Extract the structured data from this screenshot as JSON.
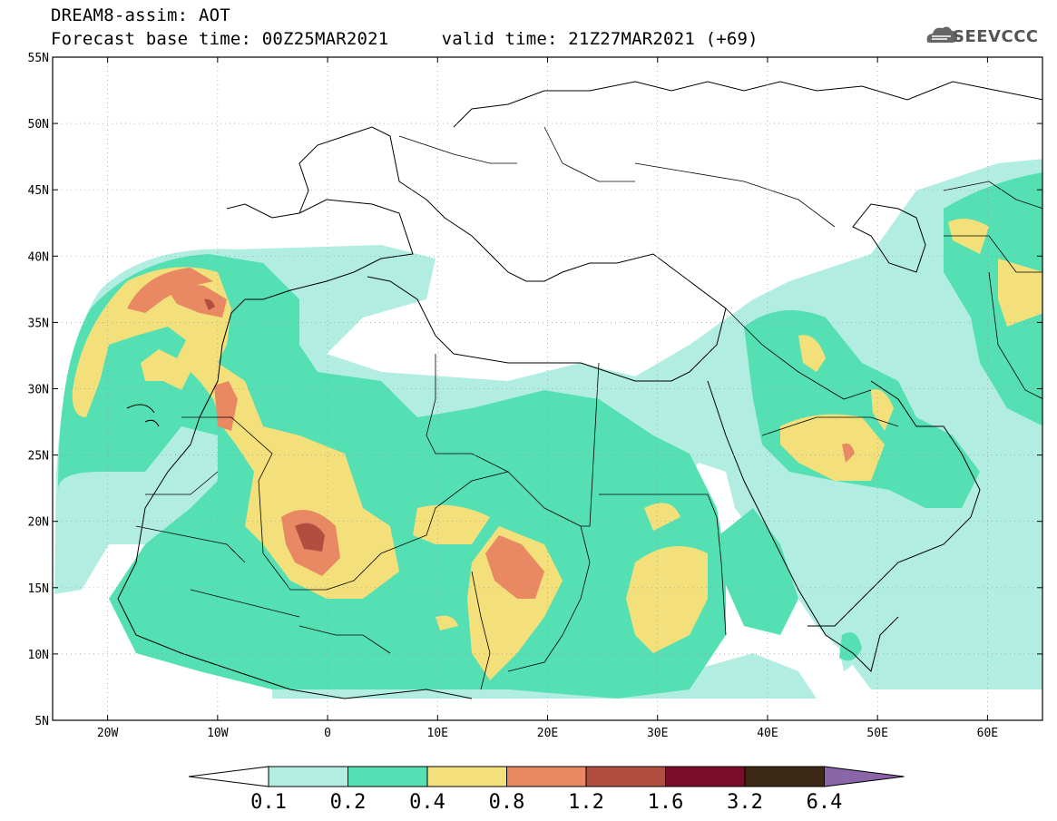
{
  "header": {
    "line1": "DREAM8-assim: AOT",
    "line2": "Forecast base time: 00Z25MAR2021     valid time: 21Z27MAR2021 (+69)"
  },
  "logo": {
    "text": "SEEVCCC",
    "icon": "cloud-icon"
  },
  "map": {
    "lon_range": [
      -25,
      65
    ],
    "lat_range": [
      5,
      55
    ],
    "lat_labels": [
      {
        "value": 55,
        "text": "55N"
      },
      {
        "value": 50,
        "text": "50N"
      },
      {
        "value": 45,
        "text": "45N"
      },
      {
        "value": 40,
        "text": "40N"
      },
      {
        "value": 35,
        "text": "35N"
      },
      {
        "value": 30,
        "text": "30N"
      },
      {
        "value": 25,
        "text": "25N"
      },
      {
        "value": 20,
        "text": "20N"
      },
      {
        "value": 15,
        "text": "15N"
      },
      {
        "value": 10,
        "text": "10N"
      },
      {
        "value": 5,
        "text": "5N"
      }
    ],
    "lon_labels": [
      {
        "value": -20,
        "text": "20W"
      },
      {
        "value": -10,
        "text": "10W"
      },
      {
        "value": 0,
        "text": "0"
      },
      {
        "value": 10,
        "text": "10E"
      },
      {
        "value": 20,
        "text": "20E"
      },
      {
        "value": 30,
        "text": "30E"
      },
      {
        "value": 40,
        "text": "40E"
      },
      {
        "value": 50,
        "text": "50E"
      },
      {
        "value": 60,
        "text": "60E"
      }
    ],
    "grid": "dotted"
  },
  "colorbar": {
    "labels": [
      "0.1",
      "0.2",
      "0.4",
      "0.8",
      "1.2",
      "1.6",
      "3.2",
      "6.4"
    ],
    "colors": [
      "#ffffff",
      "#b2ede2",
      "#55e0b4",
      "#f3e07a",
      "#e98964",
      "#b24e3f",
      "#7a0e2a",
      "#3c2814",
      "#8a65a8"
    ]
  }
}
